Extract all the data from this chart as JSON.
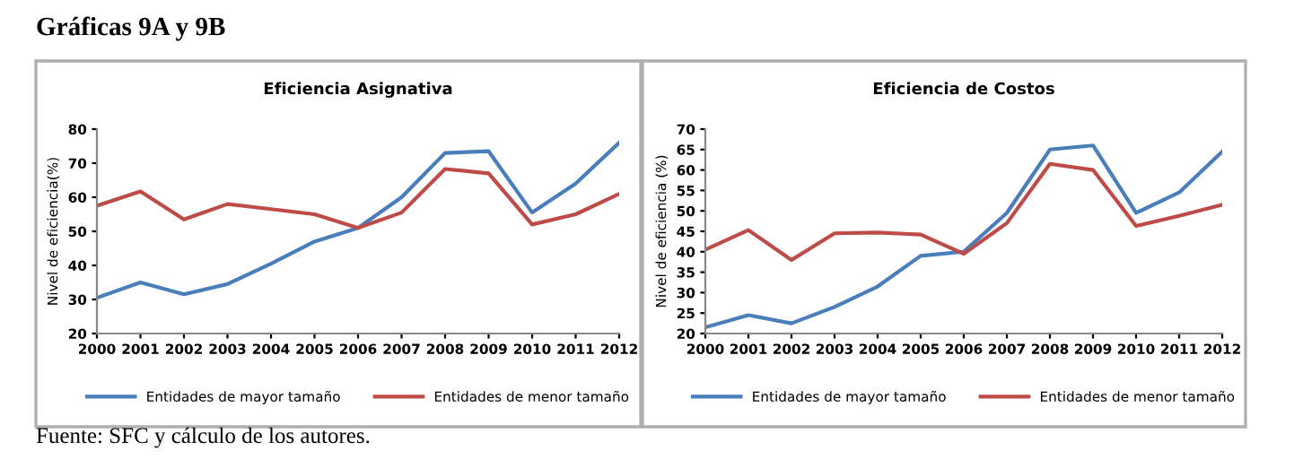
{
  "chart_data": [
    {
      "type": "line",
      "title": "Eficiencia Asignativa",
      "ylabel": "Nivel de eficiencia(%)",
      "annotations": [
        "Gráficas 9A y 9B",
        "Fuente: SFC y cálculo de los autores."
      ],
      "x": [
        2000,
        2001,
        2002,
        2003,
        2004,
        2005,
        2006,
        2007,
        2008,
        2009,
        2010,
        2011,
        2012
      ],
      "xlim": [
        2000,
        2012
      ],
      "xticks": [
        2000,
        2001,
        2002,
        2003,
        2004,
        2005,
        2006,
        2007,
        2008,
        2009,
        2010,
        2011,
        2012
      ],
      "ylim": [
        20,
        80
      ],
      "yticks": [
        20,
        30,
        40,
        50,
        60,
        70,
        80
      ],
      "grid": false,
      "legend": "bottom",
      "marker": "none",
      "line_style": "solid",
      "series": [
        {
          "name": "Entidades de mayor tamaño",
          "color": "#4a7ebb",
          "values": [
            30.5,
            35,
            31.5,
            34.5,
            40.5,
            47,
            51,
            60,
            73,
            73.5,
            55.5,
            64,
            76
          ]
        },
        {
          "name": "Entidades de menor tamaño",
          "color": "#be4b48",
          "values": [
            57.5,
            61.7,
            53.5,
            58,
            56.5,
            55,
            51,
            55.5,
            68.3,
            67,
            52,
            55,
            61
          ]
        }
      ]
    },
    {
      "type": "line",
      "title": "Eficiencia de Costos",
      "ylabel": "Nivel de eficiencia (%)",
      "x": [
        2000,
        2001,
        2002,
        2003,
        2004,
        2005,
        2006,
        2007,
        2008,
        2009,
        2010,
        2011,
        2012
      ],
      "xlim": [
        2000,
        2012
      ],
      "xticks": [
        2000,
        2001,
        2002,
        2003,
        2004,
        2005,
        2006,
        2007,
        2008,
        2009,
        2010,
        2011,
        2012
      ],
      "ylim": [
        20,
        70
      ],
      "yticks": [
        20,
        25,
        30,
        35,
        40,
        45,
        50,
        55,
        60,
        65,
        70
      ],
      "grid": false,
      "legend": "bottom",
      "marker": "none",
      "line_style": "solid",
      "series": [
        {
          "name": "Entidades de mayor tamaño",
          "color": "#4a7ebb",
          "values": [
            21.5,
            24.5,
            22.5,
            26.5,
            31.5,
            39,
            40,
            49.5,
            65,
            66,
            49.5,
            54.5,
            64.5
          ]
        },
        {
          "name": "Entidades de menor tamaño",
          "color": "#be4b48",
          "values": [
            40.5,
            45.3,
            38,
            44.5,
            44.7,
            44.2,
            39.5,
            47,
            61.5,
            60,
            46.3,
            48.8,
            51.5
          ]
        }
      ]
    }
  ]
}
